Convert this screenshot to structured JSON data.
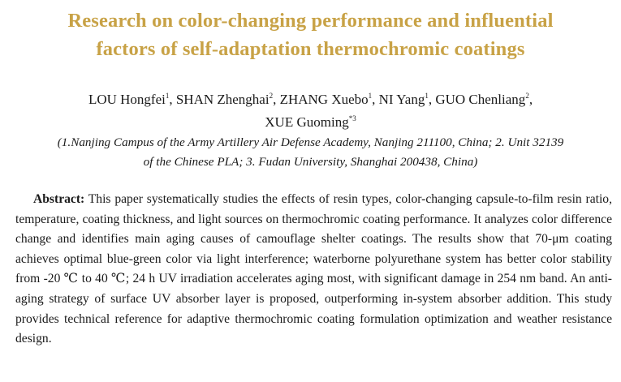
{
  "title_lines": [
    "Research on color-changing performance and influential",
    "factors of self-adaptation thermochromic coatings"
  ],
  "authors": {
    "line1": [
      {
        "name": "LOU Hongfei",
        "sup": "1"
      },
      {
        "name": "SHAN Zhenghai",
        "sup": "2"
      },
      {
        "name": "ZHANG Xuebo",
        "sup": "1"
      },
      {
        "name": "NI Yang",
        "sup": "1"
      },
      {
        "name": "GUO Chenliang",
        "sup": "2"
      }
    ],
    "line2": [
      {
        "name": "XUE Guoming",
        "sup": "*3"
      }
    ]
  },
  "affiliation_lines": [
    "(1.Nanjing Campus of the Army Artillery Air Defense Academy, Nanjing 211100, China; 2. Unit 32139",
    "of the Chinese PLA; 3. Fudan University, Shanghai 200438, China)"
  ],
  "abstract": {
    "label": "Abstract:",
    "text": "This paper systematically studies the effects of resin types, color-changing capsule-to-film resin ratio, temperature, coating thickness, and light sources on thermochromic coating performance. It analyzes color difference change and identifies main aging causes of camouflage shelter coatings. The results show that 70-μm coating achieves optimal blue-green color via light interference; waterborne polyurethane system has better color stability from -20 ℃ to 40 ℃; 24 h UV irradiation accelerates aging most, with significant damage in 254 nm band. An anti-aging strategy of surface UV absorber layer is proposed, outperforming in-system absorber addition. This study provides technical reference for adaptive thermochromic coating formulation optimization and weather resistance design."
  }
}
